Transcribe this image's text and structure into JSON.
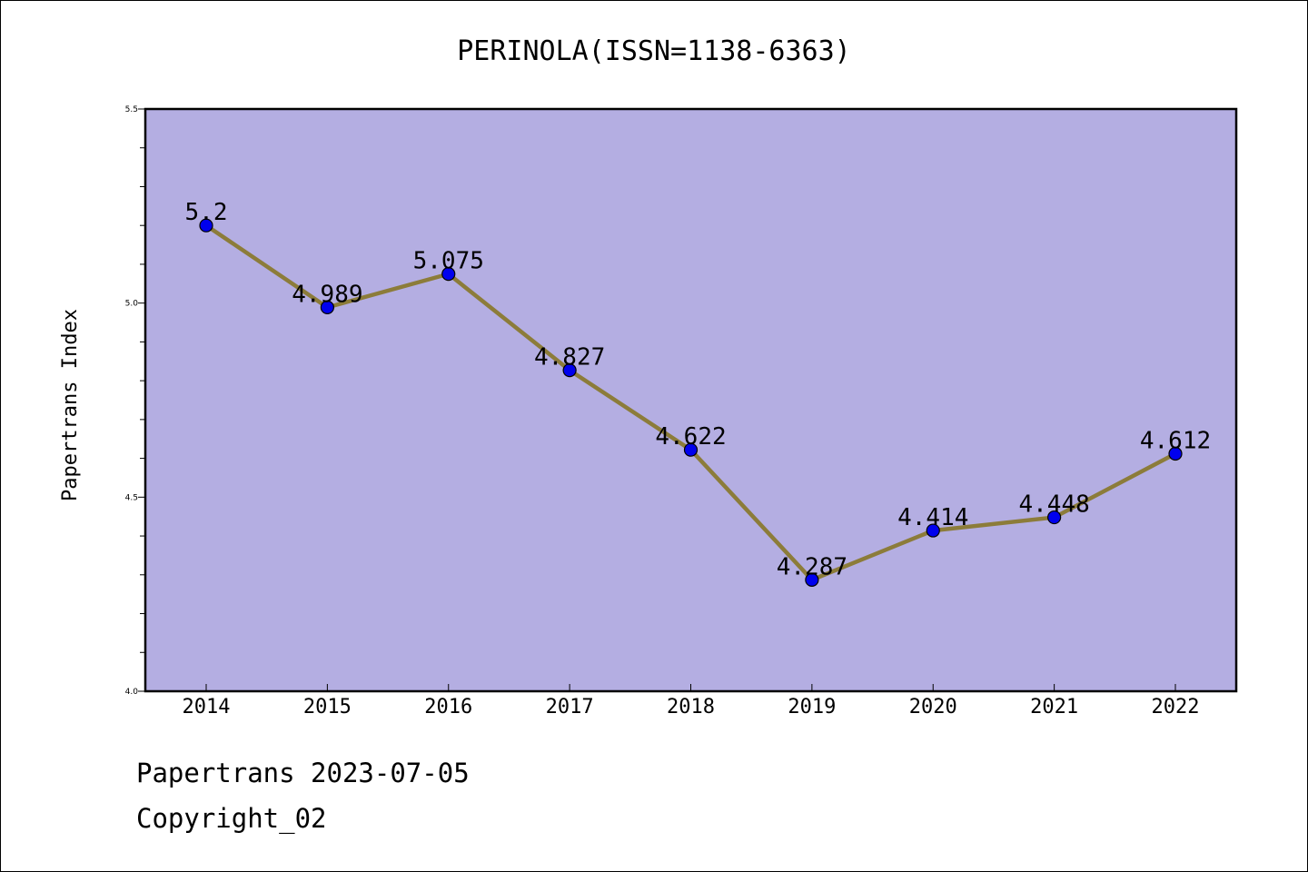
{
  "chart_data": {
    "type": "line",
    "title": "PERINOLA(ISSN=1138-6363)",
    "xlabel": "",
    "ylabel": "Papertrans Index",
    "categories": [
      "2014",
      "2015",
      "2016",
      "2017",
      "2018",
      "2019",
      "2020",
      "2021",
      "2022"
    ],
    "series": [
      {
        "values": [
          5.2,
          4.989,
          5.075,
          4.827,
          4.622,
          4.287,
          4.414,
          4.448,
          4.612
        ],
        "labels": [
          "5.2",
          "4.989",
          "5.075",
          "4.827",
          "4.622",
          "4.287",
          "4.414",
          "4.448",
          "4.612"
        ]
      }
    ],
    "ylim": [
      4.0,
      5.5
    ],
    "yticks": [
      "4.0",
      "4.5",
      "5.0",
      "5.5"
    ],
    "grid": false,
    "colors": {
      "plot_background": "#b4aee2",
      "line": "#8c7c3a",
      "marker": "#0000ee"
    }
  },
  "footer": {
    "line1": "Papertrans 2023-07-05",
    "line2": "Copyright_02"
  }
}
